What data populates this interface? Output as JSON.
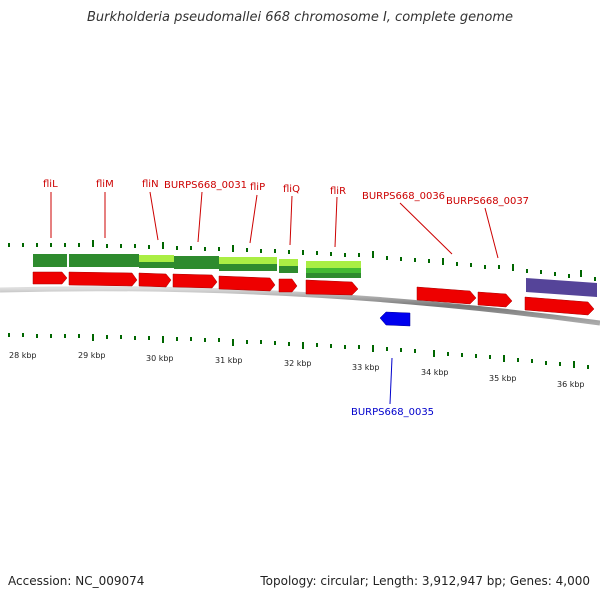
{
  "title": "Burkholderia pseudomallei 668 chromosome I, complete genome",
  "footer": {
    "accession": "Accession: NC_009074",
    "summary": "Topology: circular; Length: 3,912,947 bp; Genes: 4,000"
  },
  "kbp_labels": [
    "28 kbp",
    "29 kbp",
    "30 kbp",
    "31 kbp",
    "32 kbp",
    "33 kbp",
    "34 kbp",
    "35 kbp",
    "36 kbp"
  ],
  "gene_labels": [
    {
      "text": "fliL",
      "color": "red"
    },
    {
      "text": "fliM",
      "color": "red"
    },
    {
      "text": "fliN",
      "color": "red"
    },
    {
      "text": "BURPS668_0031",
      "color": "red"
    },
    {
      "text": "fliP",
      "color": "red"
    },
    {
      "text": "fliQ",
      "color": "red"
    },
    {
      "text": "fliR",
      "color": "red"
    },
    {
      "text": "BURPS668_0036",
      "color": "red"
    },
    {
      "text": "BURPS668_0037",
      "color": "red"
    },
    {
      "text": "BURPS668_0035",
      "color": "blue"
    }
  ],
  "colors": {
    "gene_forward": "#ee0000",
    "gene_reverse": "#0000ee",
    "feature_dark": "#2e8b2e",
    "feature_light": "#aaee44",
    "feature_purple": "#554499",
    "tick": "#006600",
    "backbone": "#888888"
  }
}
